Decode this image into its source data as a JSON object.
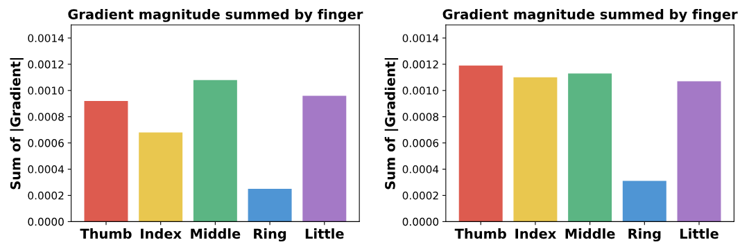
{
  "chart_data": [
    {
      "type": "bar",
      "title": "Gradient magnitude summed by finger",
      "ylabel": "Sum of |Gradient|",
      "categories": [
        "Thumb",
        "Index",
        "Middle",
        "Ring",
        "Little"
      ],
      "values": [
        0.00092,
        0.00068,
        0.00108,
        0.00025,
        0.00096
      ],
      "colors": [
        "#dd5b4f",
        "#e9c74f",
        "#5bb583",
        "#4f95d4",
        "#a479c6"
      ],
      "ylim": [
        0,
        0.0015
      ],
      "yticks": [
        {
          "value": 0,
          "label": "0.0000"
        },
        {
          "value": 0.0002,
          "label": "0.0002"
        },
        {
          "value": 0.0004,
          "label": "0.0004"
        },
        {
          "value": 0.0006,
          "label": "0.0006"
        },
        {
          "value": 0.0008,
          "label": "0.0008"
        },
        {
          "value": 0.001,
          "label": "0.0010"
        },
        {
          "value": 0.0012,
          "label": "0.0012"
        },
        {
          "value": 0.0014,
          "label": "0.0014"
        }
      ],
      "grid": false,
      "legend": false
    },
    {
      "type": "bar",
      "title": "Gradient magnitude summed by finger",
      "ylabel": "Sum of |Gradient|",
      "categories": [
        "Thumb",
        "Index",
        "Middle",
        "Ring",
        "Little"
      ],
      "values": [
        0.00119,
        0.0011,
        0.00113,
        0.00031,
        0.00107
      ],
      "colors": [
        "#dd5b4f",
        "#e9c74f",
        "#5bb583",
        "#4f95d4",
        "#a479c6"
      ],
      "ylim": [
        0,
        0.0015
      ],
      "yticks": [
        {
          "value": 0,
          "label": "0.0000"
        },
        {
          "value": 0.0002,
          "label": "0.0002"
        },
        {
          "value": 0.0004,
          "label": "0.0004"
        },
        {
          "value": 0.0006,
          "label": "0.0006"
        },
        {
          "value": 0.0008,
          "label": "0.0008"
        },
        {
          "value": 0.001,
          "label": "0.0010"
        },
        {
          "value": 0.0012,
          "label": "0.0012"
        },
        {
          "value": 0.0014,
          "label": "0.0014"
        }
      ],
      "grid": false,
      "legend": false
    }
  ]
}
